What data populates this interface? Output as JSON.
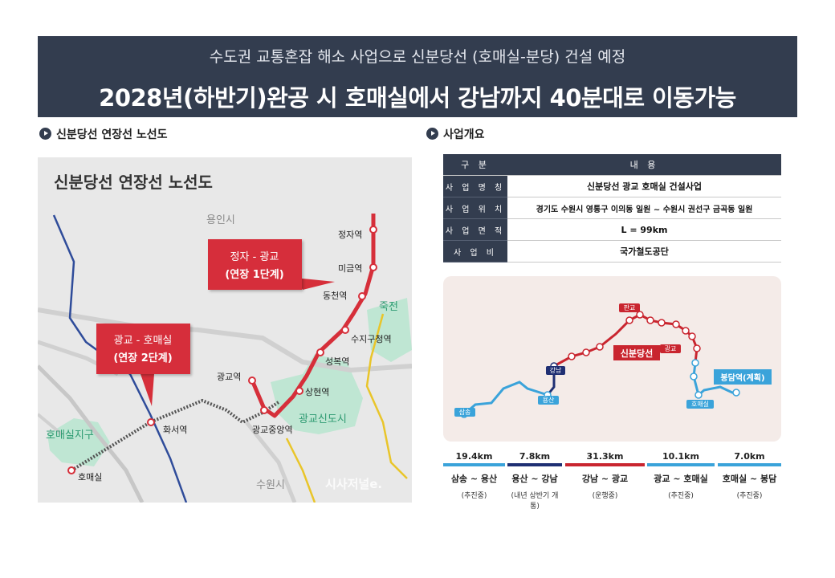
{
  "header": {
    "subtitle": "수도권 교통혼잡 해소 사업으로 신분당선 (호매실-분당) 건설 예정",
    "title": "2028년(하반기)완공 시 호매실에서 강남까지 40분대로 이동가능"
  },
  "map_section": {
    "heading": "신분당선 연장선 노선도",
    "map_title": "신분당선 연장선 노선도",
    "regions": [
      "용인시",
      "죽전",
      "광교신도시",
      "호매실지구",
      "수원시"
    ],
    "stations": [
      "정자역",
      "미금역",
      "동천역",
      "수지구청역",
      "성복역",
      "상현역",
      "광교중앙역",
      "광교역",
      "화서역",
      "호매실"
    ],
    "callout_phase1": {
      "line1": "정자 - 광교",
      "line2": "(연장 1단계)"
    },
    "callout_phase2": {
      "line1": "광교 - 호매실",
      "line2": "(연장 2단계)"
    },
    "watermark": "시사저널e.",
    "colors": {
      "phase1": "#d62f3a",
      "blue_line": "#2f4c9a",
      "yellow_line": "#e9c52a"
    }
  },
  "overview": {
    "heading": "사업개요",
    "col_headers": [
      "구 분",
      "내 용"
    ],
    "rows": [
      {
        "key": "사 업 명 칭",
        "value": "신분당선 광교 호매실 건설사업"
      },
      {
        "key": "사 업 위 치",
        "value": "경기도 수원시 영통구 이의동 일원 ~ 수원시 권선구 금곡동 일원"
      },
      {
        "key": "사 업 면 적",
        "value": "L = 99km"
      },
      {
        "key": "사 업 비",
        "value": "국가철도공단"
      }
    ]
  },
  "route_diagram": {
    "labels": {
      "pangyo": "판교",
      "gwanggyo": "광교",
      "line_name": "신분당선",
      "bongdam": "봉담역(계획)",
      "gangnam": "강남",
      "yongsan": "용산",
      "samsong": "삼송",
      "homaesil": "호매실"
    }
  },
  "segments": [
    {
      "distance": "19.4km",
      "name": "삼송 ~ 용산",
      "status": "(추진중)",
      "color": "#3aa3da"
    },
    {
      "distance": "7.8km",
      "name": "용산 ~ 강남",
      "status": "(내년 상반기 개통)",
      "color": "#1f2f73"
    },
    {
      "distance": "31.3km",
      "name": "강남 ~ 광교",
      "status": "(운행중)",
      "color": "#c9252f"
    },
    {
      "distance": "10.1km",
      "name": "광교 ~ 호매실",
      "status": "(추진중)",
      "color": "#3aa3da"
    },
    {
      "distance": "7.0km",
      "name": "호매실 ~ 봉담",
      "status": "(추진중)",
      "color": "#3aa3da"
    }
  ]
}
